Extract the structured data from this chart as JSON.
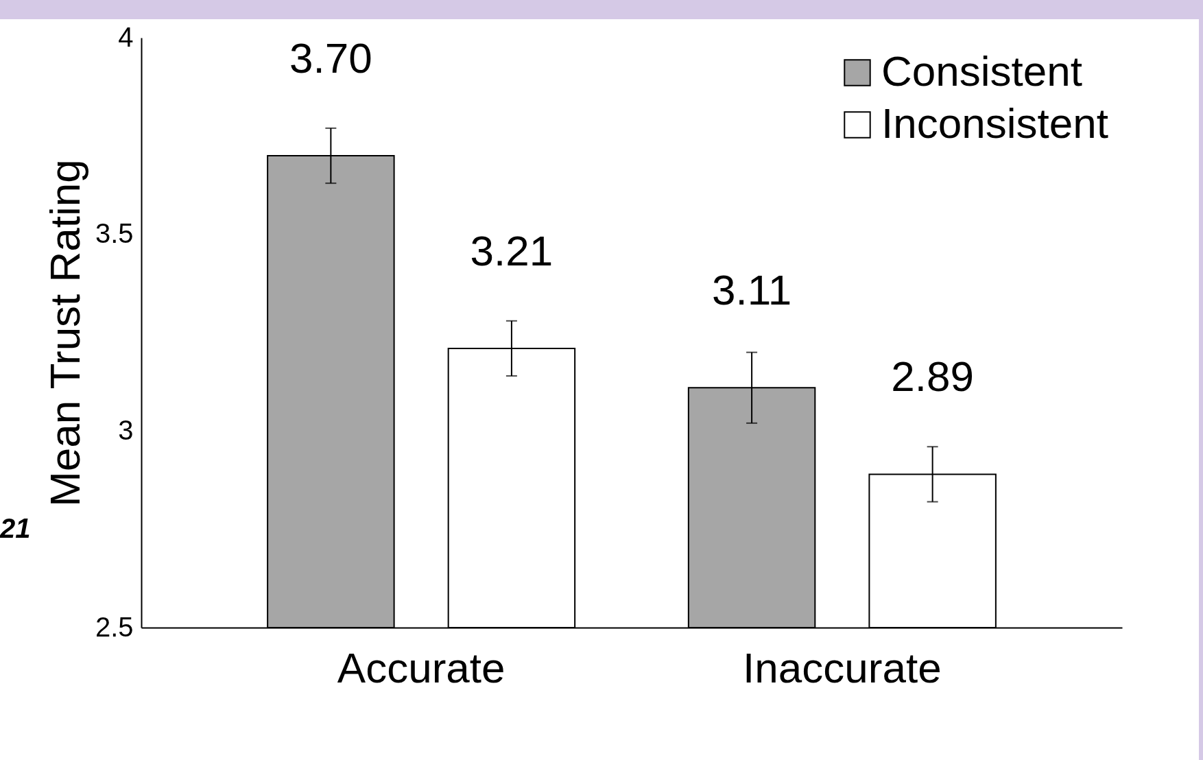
{
  "chart_data": {
    "type": "bar",
    "ylabel": "Mean Trust Rating",
    "categories": [
      "Accurate",
      "Inaccurate"
    ],
    "series": [
      {
        "name": "Consistent",
        "color": "#a6a6a6",
        "values": [
          3.7,
          3.11
        ],
        "errors": [
          0.07,
          0.09
        ],
        "value_labels": [
          "3.70",
          "3.11"
        ]
      },
      {
        "name": "Inconsistent",
        "color": "#ffffff",
        "values": [
          3.21,
          2.89
        ],
        "errors": [
          0.07,
          0.07
        ],
        "value_labels": [
          "3.21",
          "2.89"
        ]
      }
    ],
    "ylim": [
      2.5,
      4
    ],
    "yticks": [
      2.5,
      3,
      3.5,
      4
    ],
    "legend": "top right",
    "grid": false,
    "annotations": [
      "21"
    ]
  }
}
